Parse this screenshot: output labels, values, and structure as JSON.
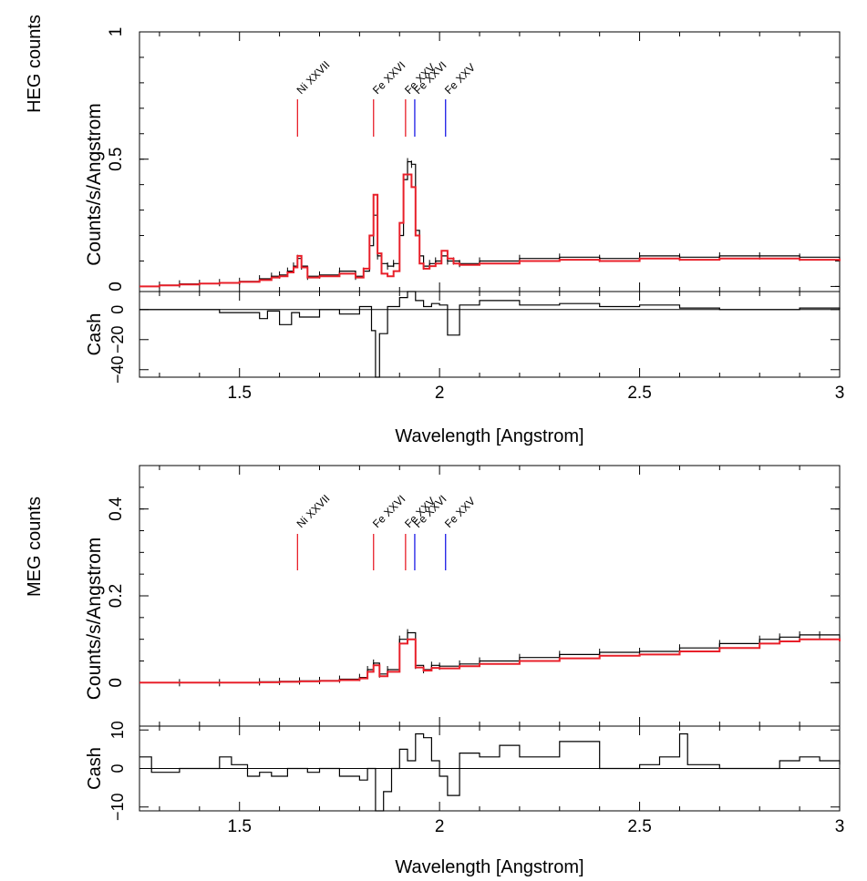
{
  "colors": {
    "data": "#000000",
    "model": "#e8202a",
    "label_red": "#e8202a",
    "label_blue": "#1a1ae6"
  },
  "chart_data": [
    {
      "type": "line",
      "side_label": "HEG counts",
      "ylabel": "Counts/s/Angstrom",
      "xlabel": "Wavelength [Angstrom]",
      "xlim": [
        1.25,
        3.0
      ],
      "ylim": [
        -0.02,
        1.0
      ],
      "x_ticks": [
        "1.5",
        "2",
        "2.5",
        "3"
      ],
      "y_ticks": [
        "0",
        "0.5",
        "1"
      ],
      "line_labels": [
        {
          "text": "Ni XXVII",
          "x": 1.645,
          "color": "red"
        },
        {
          "text": "Fe XXVI",
          "x": 1.835,
          "color": "red"
        },
        {
          "text": "Fe XXV",
          "x": 1.915,
          "color": "red"
        },
        {
          "text": "Fe XXVI",
          "x": 1.938,
          "color": "blue"
        },
        {
          "text": "Fe XXV",
          "x": 2.015,
          "color": "blue"
        }
      ],
      "spectrum": {
        "x": [
          1.25,
          1.3,
          1.35,
          1.4,
          1.45,
          1.5,
          1.55,
          1.58,
          1.6,
          1.62,
          1.635,
          1.645,
          1.655,
          1.67,
          1.7,
          1.75,
          1.79,
          1.81,
          1.825,
          1.835,
          1.845,
          1.855,
          1.87,
          1.885,
          1.9,
          1.91,
          1.92,
          1.93,
          1.94,
          1.95,
          1.96,
          1.975,
          1.99,
          2.005,
          2.02,
          2.035,
          2.05,
          2.1,
          2.2,
          2.3,
          2.4,
          2.5,
          2.6,
          2.7,
          2.8,
          2.9,
          3.0
        ],
        "data": [
          0.0,
          0.005,
          0.01,
          0.012,
          0.015,
          0.02,
          0.03,
          0.04,
          0.045,
          0.06,
          0.08,
          0.11,
          0.08,
          0.04,
          0.045,
          0.06,
          0.04,
          0.06,
          0.16,
          0.28,
          0.12,
          0.09,
          0.08,
          0.09,
          0.2,
          0.42,
          0.49,
          0.48,
          0.22,
          0.12,
          0.08,
          0.09,
          0.1,
          0.12,
          0.1,
          0.1,
          0.09,
          0.1,
          0.11,
          0.115,
          0.11,
          0.12,
          0.115,
          0.12,
          0.12,
          0.115,
          0.11
        ],
        "model": [
          0.0,
          0.004,
          0.008,
          0.011,
          0.014,
          0.018,
          0.025,
          0.035,
          0.04,
          0.055,
          0.075,
          0.12,
          0.075,
          0.035,
          0.04,
          0.05,
          0.035,
          0.07,
          0.2,
          0.36,
          0.13,
          0.05,
          0.04,
          0.06,
          0.25,
          0.44,
          0.44,
          0.39,
          0.2,
          0.09,
          0.07,
          0.08,
          0.09,
          0.14,
          0.11,
          0.09,
          0.085,
          0.09,
          0.1,
          0.105,
          0.1,
          0.11,
          0.105,
          0.11,
          0.11,
          0.105,
          0.1
        ]
      },
      "residual": {
        "label": "Cash",
        "ylim": [
          -45,
          12
        ],
        "y_ticks": [
          "0",
          "−20",
          "−40"
        ],
        "x": [
          1.25,
          1.35,
          1.45,
          1.55,
          1.57,
          1.6,
          1.63,
          1.65,
          1.7,
          1.75,
          1.8,
          1.83,
          1.84,
          1.85,
          1.87,
          1.9,
          1.92,
          1.94,
          1.96,
          1.98,
          2.0,
          2.02,
          2.05,
          2.1,
          2.2,
          2.3,
          2.4,
          2.5,
          2.6,
          2.7,
          2.8,
          2.9,
          3.0
        ],
        "values": [
          0,
          0,
          -2,
          -6,
          -1,
          -10,
          -2,
          -5,
          0,
          -3,
          2,
          -14,
          -45,
          -16,
          2,
          8,
          12,
          6,
          2,
          4,
          3,
          -17,
          3,
          6,
          3,
          4,
          2,
          3,
          1,
          0,
          0,
          1,
          0
        ]
      }
    },
    {
      "type": "line",
      "side_label": "MEG counts",
      "ylabel": "Counts/s/Angstrom",
      "xlabel": "Wavelength [Angstrom]",
      "xlim": [
        1.25,
        3.0
      ],
      "ylim": [
        -0.1,
        0.5
      ],
      "x_ticks": [
        "1.5",
        "2",
        "2.5",
        "3"
      ],
      "y_ticks": [
        "0",
        "0.2",
        "0.4"
      ],
      "line_labels": [
        {
          "text": "Ni XXVII",
          "x": 1.645,
          "color": "red"
        },
        {
          "text": "Fe XXVI",
          "x": 1.835,
          "color": "red"
        },
        {
          "text": "Fe XXV",
          "x": 1.915,
          "color": "red"
        },
        {
          "text": "Fe XXVI",
          "x": 1.938,
          "color": "blue"
        },
        {
          "text": "Fe XXV",
          "x": 2.015,
          "color": "blue"
        }
      ],
      "spectrum": {
        "x": [
          1.25,
          1.35,
          1.45,
          1.55,
          1.6,
          1.65,
          1.7,
          1.75,
          1.8,
          1.82,
          1.835,
          1.85,
          1.87,
          1.9,
          1.92,
          1.94,
          1.96,
          1.98,
          2.0,
          2.05,
          2.1,
          2.2,
          2.3,
          2.4,
          2.5,
          2.6,
          2.7,
          2.8,
          2.85,
          2.9,
          2.95,
          3.0
        ],
        "data": [
          0.0,
          0.0,
          0.0,
          0.002,
          0.003,
          0.004,
          0.005,
          0.008,
          0.012,
          0.03,
          0.045,
          0.02,
          0.03,
          0.1,
          0.115,
          0.04,
          0.03,
          0.04,
          0.038,
          0.043,
          0.05,
          0.058,
          0.065,
          0.07,
          0.072,
          0.08,
          0.09,
          0.1,
          0.105,
          0.11,
          0.11,
          0.1
        ],
        "model": [
          0.0,
          0.0,
          0.0,
          0.001,
          0.002,
          0.003,
          0.004,
          0.006,
          0.01,
          0.025,
          0.04,
          0.015,
          0.025,
          0.09,
          0.1,
          0.035,
          0.028,
          0.034,
          0.033,
          0.038,
          0.043,
          0.05,
          0.056,
          0.062,
          0.065,
          0.072,
          0.08,
          0.09,
          0.095,
          0.1,
          0.1,
          0.095
        ]
      },
      "residual": {
        "label": "Cash",
        "ylim": [
          -11,
          11
        ],
        "y_ticks": [
          "−10",
          "0",
          "10"
        ],
        "x": [
          1.25,
          1.28,
          1.35,
          1.45,
          1.48,
          1.52,
          1.55,
          1.58,
          1.62,
          1.67,
          1.7,
          1.75,
          1.8,
          1.82,
          1.84,
          1.86,
          1.88,
          1.9,
          1.92,
          1.94,
          1.96,
          1.98,
          2.0,
          2.02,
          2.05,
          2.1,
          2.15,
          2.2,
          2.25,
          2.3,
          2.4,
          2.5,
          2.55,
          2.6,
          2.62,
          2.7,
          2.8,
          2.85,
          2.9,
          2.95,
          3.0
        ],
        "values": [
          3,
          -1,
          0,
          3,
          1,
          -2,
          -1,
          -2,
          0,
          -1,
          0,
          -2,
          -3,
          0,
          -11,
          -6,
          0,
          5,
          2,
          9,
          8,
          2,
          -2,
          -7,
          4,
          3,
          6,
          3,
          3,
          7,
          0,
          1,
          3,
          9,
          1,
          0,
          0,
          2,
          3,
          2,
          1
        ]
      }
    }
  ]
}
